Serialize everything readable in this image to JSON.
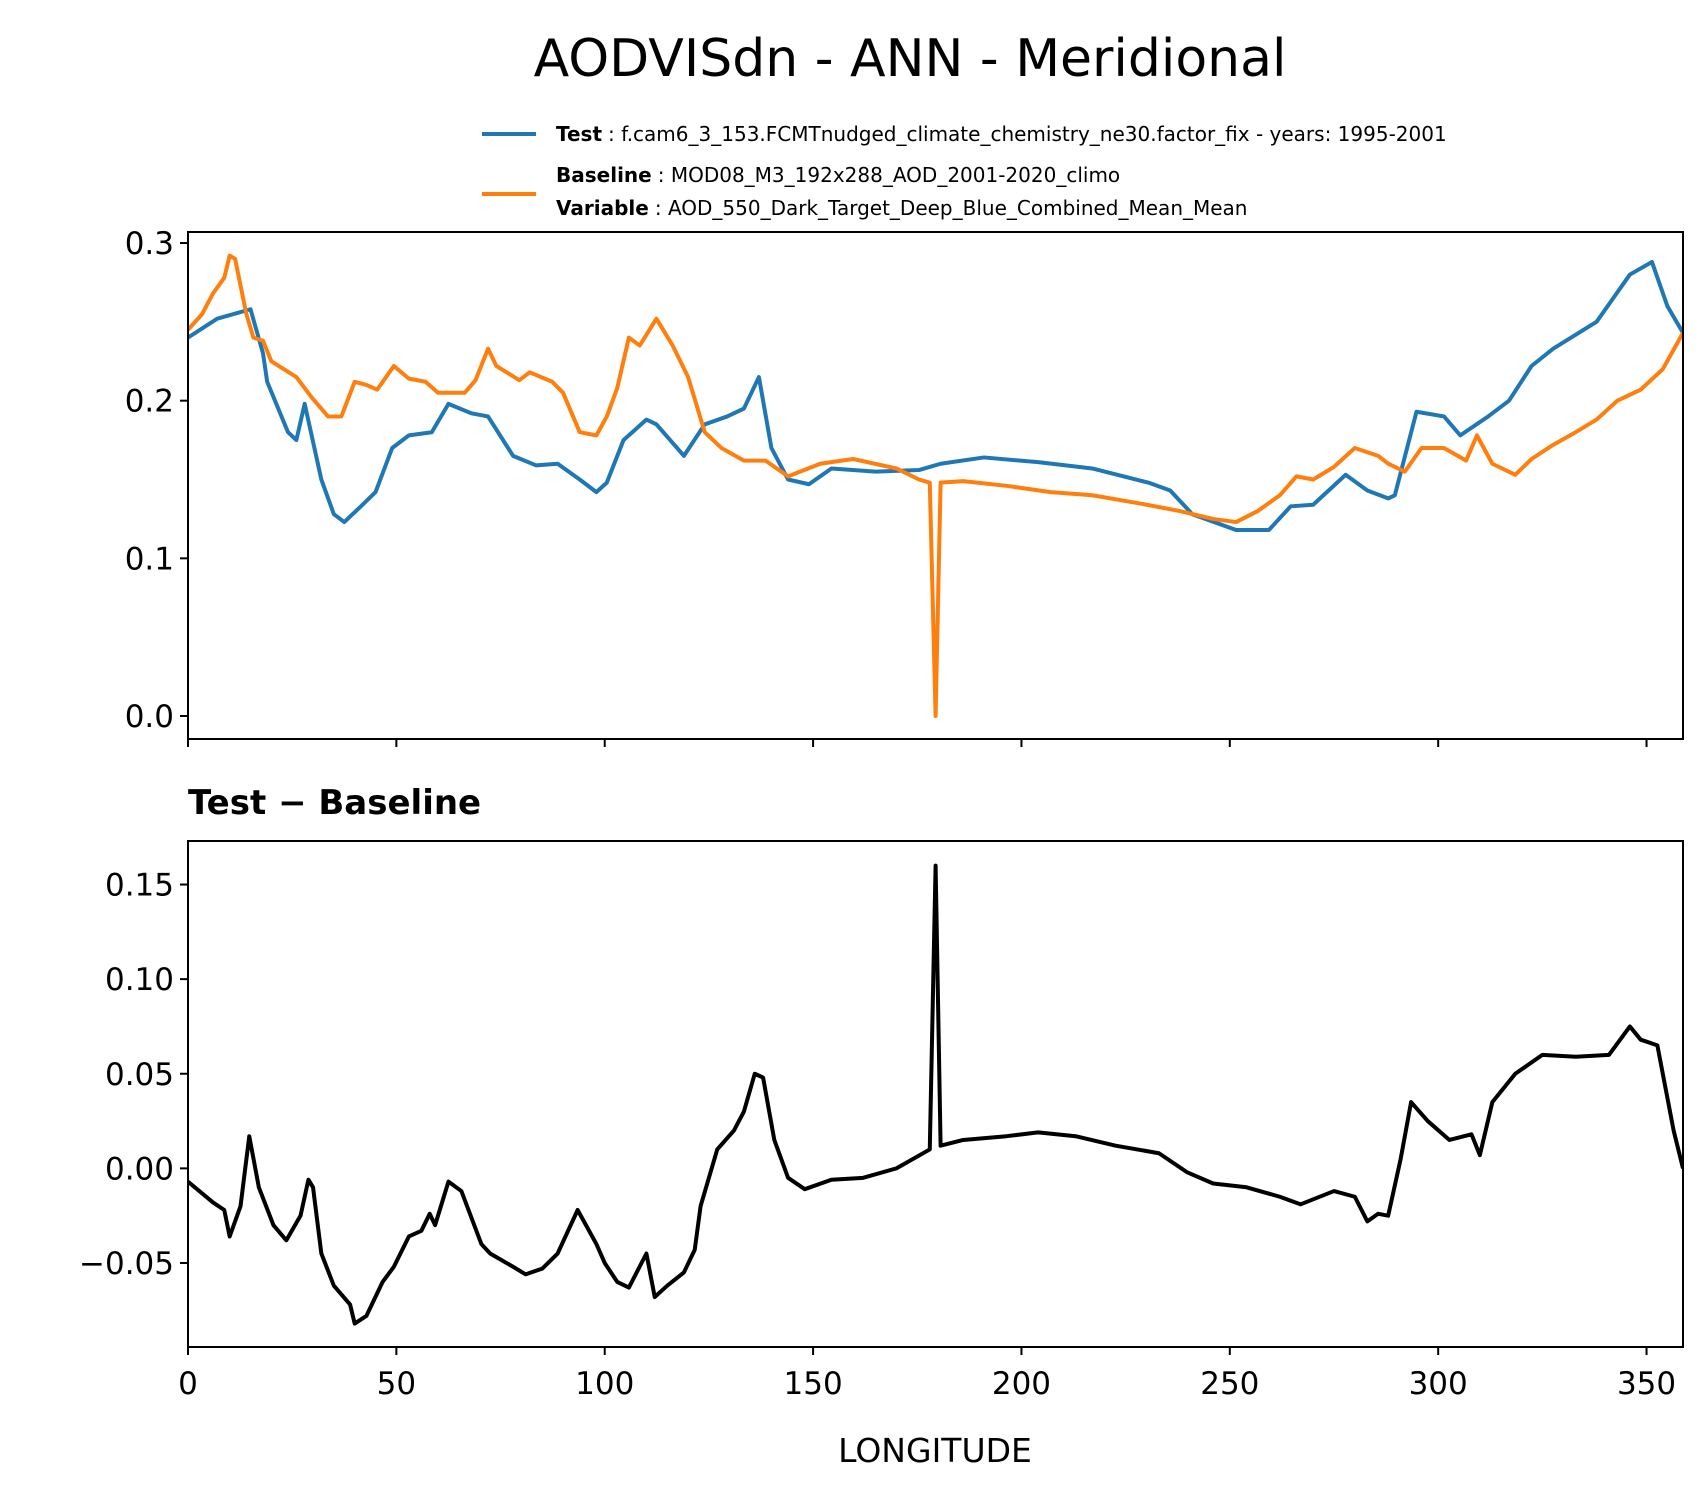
{
  "title": "AODVISdn - ANN - Meridional",
  "chart_data": [
    {
      "type": "line",
      "series": [
        {
          "name": "Test",
          "label": ": f.cam6_3_153.FCMTnudged_climate_chemistry_ne30.factor_fix - years: 1995-2001",
          "color": "#1f77b4",
          "x": [
            0,
            7,
            15,
            18,
            19,
            24,
            26,
            28,
            32,
            35,
            37.5,
            41.5,
            45,
            49,
            53,
            58.5,
            62.5,
            68,
            72,
            78,
            83.5,
            88.7,
            94,
            98,
            100.5,
            104.5,
            110,
            112.4,
            119,
            124,
            129.4,
            133.4,
            137,
            140,
            144,
            149,
            154.4,
            165,
            175.4,
            180.6,
            191,
            204,
            217,
            230.5,
            235.7,
            241,
            251.5,
            259.4,
            264.6,
            270,
            277.8,
            283,
            288,
            289.6,
            294.8,
            301.4,
            305.3,
            312,
            317,
            322.4,
            327.6,
            338,
            346,
            351.3,
            355,
            358.75
          ],
          "values": [
            0.24,
            0.252,
            0.258,
            0.23,
            0.212,
            0.18,
            0.175,
            0.198,
            0.15,
            0.128,
            0.123,
            0.133,
            0.142,
            0.17,
            0.178,
            0.18,
            0.198,
            0.192,
            0.19,
            0.165,
            0.159,
            0.16,
            0.15,
            0.142,
            0.148,
            0.175,
            0.188,
            0.185,
            0.165,
            0.185,
            0.19,
            0.195,
            0.215,
            0.17,
            0.15,
            0.147,
            0.157,
            0.155,
            0.156,
            0.16,
            0.164,
            0.161,
            0.157,
            0.148,
            0.143,
            0.128,
            0.118,
            0.118,
            0.133,
            0.134,
            0.153,
            0.143,
            0.138,
            0.14,
            0.193,
            0.19,
            0.178,
            0.19,
            0.2,
            0.222,
            0.233,
            0.25,
            0.28,
            0.288,
            0.26,
            0.243
          ]
        },
        {
          "name": "Baseline",
          "label": ": MOD08_M3_192x288_AOD_2001-2020_climo",
          "variable_name": "Variable",
          "variable": ": AOD_550_Dark_Target_Deep_Blue_Combined_Mean_Mean",
          "color": "#ff7f0e",
          "x": [
            0,
            3.4,
            6,
            8.7,
            10,
            11.3,
            14,
            15.7,
            18,
            20,
            26,
            29.7,
            33.6,
            36.8,
            40,
            42.8,
            45.4,
            49.4,
            53,
            57,
            60,
            62.5,
            66.4,
            69,
            72,
            74,
            79.5,
            82,
            87.4,
            90,
            94,
            98,
            100.5,
            103,
            105.8,
            108.4,
            112.4,
            116.3,
            120,
            124,
            128,
            133.4,
            138.6,
            144,
            151.7,
            159.6,
            170,
            175.4,
            178,
            179.4,
            180.6,
            186,
            196.4,
            207,
            217,
            228,
            238,
            246,
            251.5,
            256.7,
            262,
            266,
            270,
            275,
            280,
            285.6,
            288,
            292,
            296,
            301.4,
            306.7,
            309.3,
            313,
            318.5,
            322.4,
            327.6,
            333,
            338,
            343,
            348.6,
            353.9,
            358.75
          ],
          "values": [
            0.245,
            0.255,
            0.268,
            0.278,
            0.292,
            0.29,
            0.255,
            0.24,
            0.238,
            0.225,
            0.215,
            0.202,
            0.19,
            0.19,
            0.212,
            0.21,
            0.207,
            0.222,
            0.214,
            0.212,
            0.205,
            0.205,
            0.205,
            0.213,
            0.233,
            0.222,
            0.213,
            0.218,
            0.212,
            0.205,
            0.18,
            0.178,
            0.19,
            0.208,
            0.24,
            0.235,
            0.252,
            0.235,
            0.215,
            0.18,
            0.17,
            0.162,
            0.162,
            0.152,
            0.16,
            0.163,
            0.157,
            0.15,
            0.148,
            0.0,
            0.148,
            0.149,
            0.146,
            0.142,
            0.14,
            0.135,
            0.13,
            0.125,
            0.123,
            0.13,
            0.14,
            0.152,
            0.15,
            0.158,
            0.17,
            0.165,
            0.16,
            0.155,
            0.17,
            0.17,
            0.162,
            0.178,
            0.16,
            0.153,
            0.163,
            0.172,
            0.18,
            0.188,
            0.2,
            0.207,
            0.22,
            0.243
          ]
        }
      ],
      "xlim": [
        0,
        358.75
      ],
      "xticks": [
        0,
        50,
        100,
        150,
        200,
        250,
        300,
        350
      ],
      "xticklabels": false,
      "ylim": [
        -0.0146,
        0.307
      ],
      "yticks": [
        {
          "value": 0,
          "label": "0.0"
        },
        0.1,
        0.2,
        0.3
      ]
    },
    {
      "type": "line",
      "title": "Test − Baseline",
      "xlabel": "LONGITUDE",
      "series": [
        {
          "color": "#000000",
          "x": [
            0,
            6,
            8.7,
            10,
            12.6,
            14.7,
            17,
            20.5,
            23.6,
            27,
            28.9,
            30,
            32,
            35,
            38.9,
            40,
            42.8,
            46.7,
            49.4,
            53,
            56,
            58,
            59.3,
            62.5,
            65.6,
            70.4,
            72.5,
            78,
            81,
            85,
            88.7,
            93.5,
            98,
            100,
            103,
            105.8,
            110,
            112,
            115,
            119,
            121.6,
            123,
            127,
            131,
            133.4,
            136,
            138,
            140.7,
            144,
            148,
            154.4,
            162,
            170,
            178,
            179.4,
            180.6,
            186,
            196.4,
            204,
            213,
            222.6,
            233,
            239.7,
            246,
            254,
            262,
            267,
            275,
            280,
            283,
            285.6,
            288,
            291,
            293.5,
            297.5,
            302.7,
            308,
            310,
            313,
            318.5,
            325,
            333,
            341,
            346,
            348.6,
            352.6,
            356.5,
            358.75
          ],
          "values": [
            -0.007,
            -0.018,
            -0.022,
            -0.036,
            -0.02,
            0.017,
            -0.01,
            -0.03,
            -0.038,
            -0.025,
            -0.006,
            -0.01,
            -0.045,
            -0.062,
            -0.072,
            -0.082,
            -0.078,
            -0.06,
            -0.052,
            -0.036,
            -0.033,
            -0.024,
            -0.03,
            -0.007,
            -0.012,
            -0.04,
            -0.045,
            -0.052,
            -0.056,
            -0.053,
            -0.045,
            -0.022,
            -0.04,
            -0.05,
            -0.06,
            -0.063,
            -0.045,
            -0.068,
            -0.062,
            -0.055,
            -0.043,
            -0.02,
            0.01,
            0.02,
            0.03,
            0.05,
            0.048,
            0.015,
            -0.005,
            -0.011,
            -0.006,
            -0.005,
            0.0,
            0.01,
            0.16,
            0.012,
            0.015,
            0.017,
            0.019,
            0.017,
            0.012,
            0.008,
            -0.002,
            -0.008,
            -0.01,
            -0.015,
            -0.019,
            -0.012,
            -0.015,
            -0.028,
            -0.024,
            -0.025,
            0.005,
            0.035,
            0.025,
            0.015,
            0.018,
            0.007,
            0.035,
            0.05,
            0.06,
            0.059,
            0.06,
            0.075,
            0.068,
            0.065,
            0.02,
            0.0
          ]
        }
      ],
      "xlim": [
        0,
        358.75
      ],
      "xticks": [
        0,
        50,
        100,
        150,
        200,
        250,
        300,
        350
      ],
      "xticklabels": true,
      "ylim": [
        -0.0944,
        0.173
      ],
      "yticks": [
        {
          "value": -0.05,
          "label": "−0.05"
        },
        {
          "value": 0,
          "label": "0.00"
        },
        0.05,
        {
          "value": 0.1,
          "label": "0.10"
        },
        0.15
      ]
    }
  ]
}
